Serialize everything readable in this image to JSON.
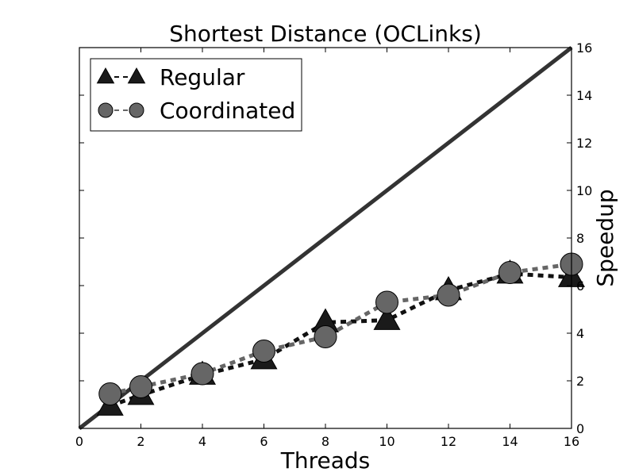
{
  "chart_data": {
    "type": "line",
    "title": "Shortest Distance (OCLinks)",
    "xlabel": "Threads",
    "ylabel": "Speedup",
    "xlim": [
      0,
      16
    ],
    "ylim": [
      0,
      16
    ],
    "x_ticks": [
      0,
      2,
      4,
      6,
      8,
      10,
      12,
      14,
      16
    ],
    "y_ticks": [
      0,
      2,
      4,
      6,
      8,
      10,
      12,
      14,
      16
    ],
    "y_axis_side": "right",
    "grid": false,
    "legend_position": "top-left",
    "reference_line": {
      "x": [
        0,
        16
      ],
      "y": [
        0,
        16
      ],
      "color": "#333333"
    },
    "x": [
      1,
      2,
      4,
      6,
      8,
      10,
      12,
      14,
      16
    ],
    "series": [
      {
        "name": "Regular",
        "marker": "triangle",
        "color": "#111111",
        "marker_color": "#1a1a1a",
        "values": [
          0.95,
          1.4,
          2.25,
          2.9,
          4.45,
          4.55,
          5.8,
          6.5,
          6.35
        ]
      },
      {
        "name": "Coordinated",
        "marker": "circle",
        "color": "#666666",
        "marker_color": "#666666",
        "values": [
          1.45,
          1.75,
          2.3,
          3.25,
          3.85,
          5.3,
          5.6,
          6.55,
          6.9
        ]
      }
    ]
  }
}
